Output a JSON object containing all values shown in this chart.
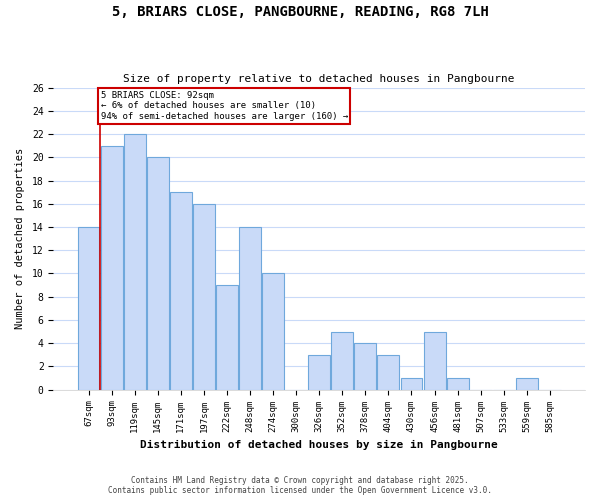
{
  "title": "5, BRIARS CLOSE, PANGBOURNE, READING, RG8 7LH",
  "subtitle": "Size of property relative to detached houses in Pangbourne",
  "xlabel": "Distribution of detached houses by size in Pangbourne",
  "ylabel": "Number of detached properties",
  "bar_labels": [
    "67sqm",
    "93sqm",
    "119sqm",
    "145sqm",
    "171sqm",
    "197sqm",
    "222sqm",
    "248sqm",
    "274sqm",
    "300sqm",
    "326sqm",
    "352sqm",
    "378sqm",
    "404sqm",
    "430sqm",
    "456sqm",
    "481sqm",
    "507sqm",
    "533sqm",
    "559sqm",
    "585sqm"
  ],
  "bar_values": [
    14,
    21,
    22,
    20,
    17,
    16,
    9,
    14,
    10,
    0,
    3,
    5,
    4,
    3,
    1,
    5,
    1,
    0,
    0,
    1,
    0
  ],
  "bar_color": "#c9daf8",
  "bar_edge_color": "#6fa8dc",
  "background_color": "#ffffff",
  "grid_color": "#c9daf8",
  "annotation_line_color": "#cc0000",
  "annotation_box_text": "5 BRIARS CLOSE: 92sqm\n← 6% of detached houses are smaller (10)\n94% of semi-detached houses are larger (160) →",
  "annotation_box_edge_color": "#cc0000",
  "ylim": [
    0,
    26
  ],
  "yticks": [
    0,
    2,
    4,
    6,
    8,
    10,
    12,
    14,
    16,
    18,
    20,
    22,
    24,
    26
  ],
  "footer_line1": "Contains HM Land Registry data © Crown copyright and database right 2025.",
  "footer_line2": "Contains public sector information licensed under the Open Government Licence v3.0.",
  "figsize": [
    6.0,
    5.0
  ],
  "dpi": 100
}
